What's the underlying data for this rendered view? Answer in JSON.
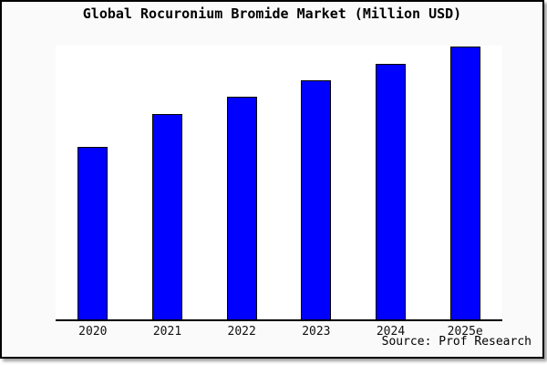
{
  "title": "Global Rocuronium Bromide Market (Million USD)",
  "source": "Source: Prof Research",
  "colors": {
    "bar_fill": "#0000FF",
    "bar_border": "#000000",
    "canvas_bg": "#FAFAFA",
    "plot_bg": "#FFFFFF",
    "axis": "#000000",
    "frame_border": "#000000"
  },
  "chart_data": {
    "type": "bar",
    "title": "Global Rocuronium Bromide Market (Million USD)",
    "categories": [
      "2020",
      "2021",
      "2022",
      "2023",
      "2024",
      "2025e"
    ],
    "values": [
      189,
      225,
      244,
      262,
      280,
      299
    ],
    "xlabel": "",
    "ylabel": "",
    "ylim": [
      0,
      300
    ],
    "y_axis_labeled": false,
    "grid": false,
    "legend": false,
    "value_note": "y-axis is unlabeled in the image; values are proportional estimates on a 0-300 scale",
    "source_annotation": "Source: Prof Research"
  }
}
